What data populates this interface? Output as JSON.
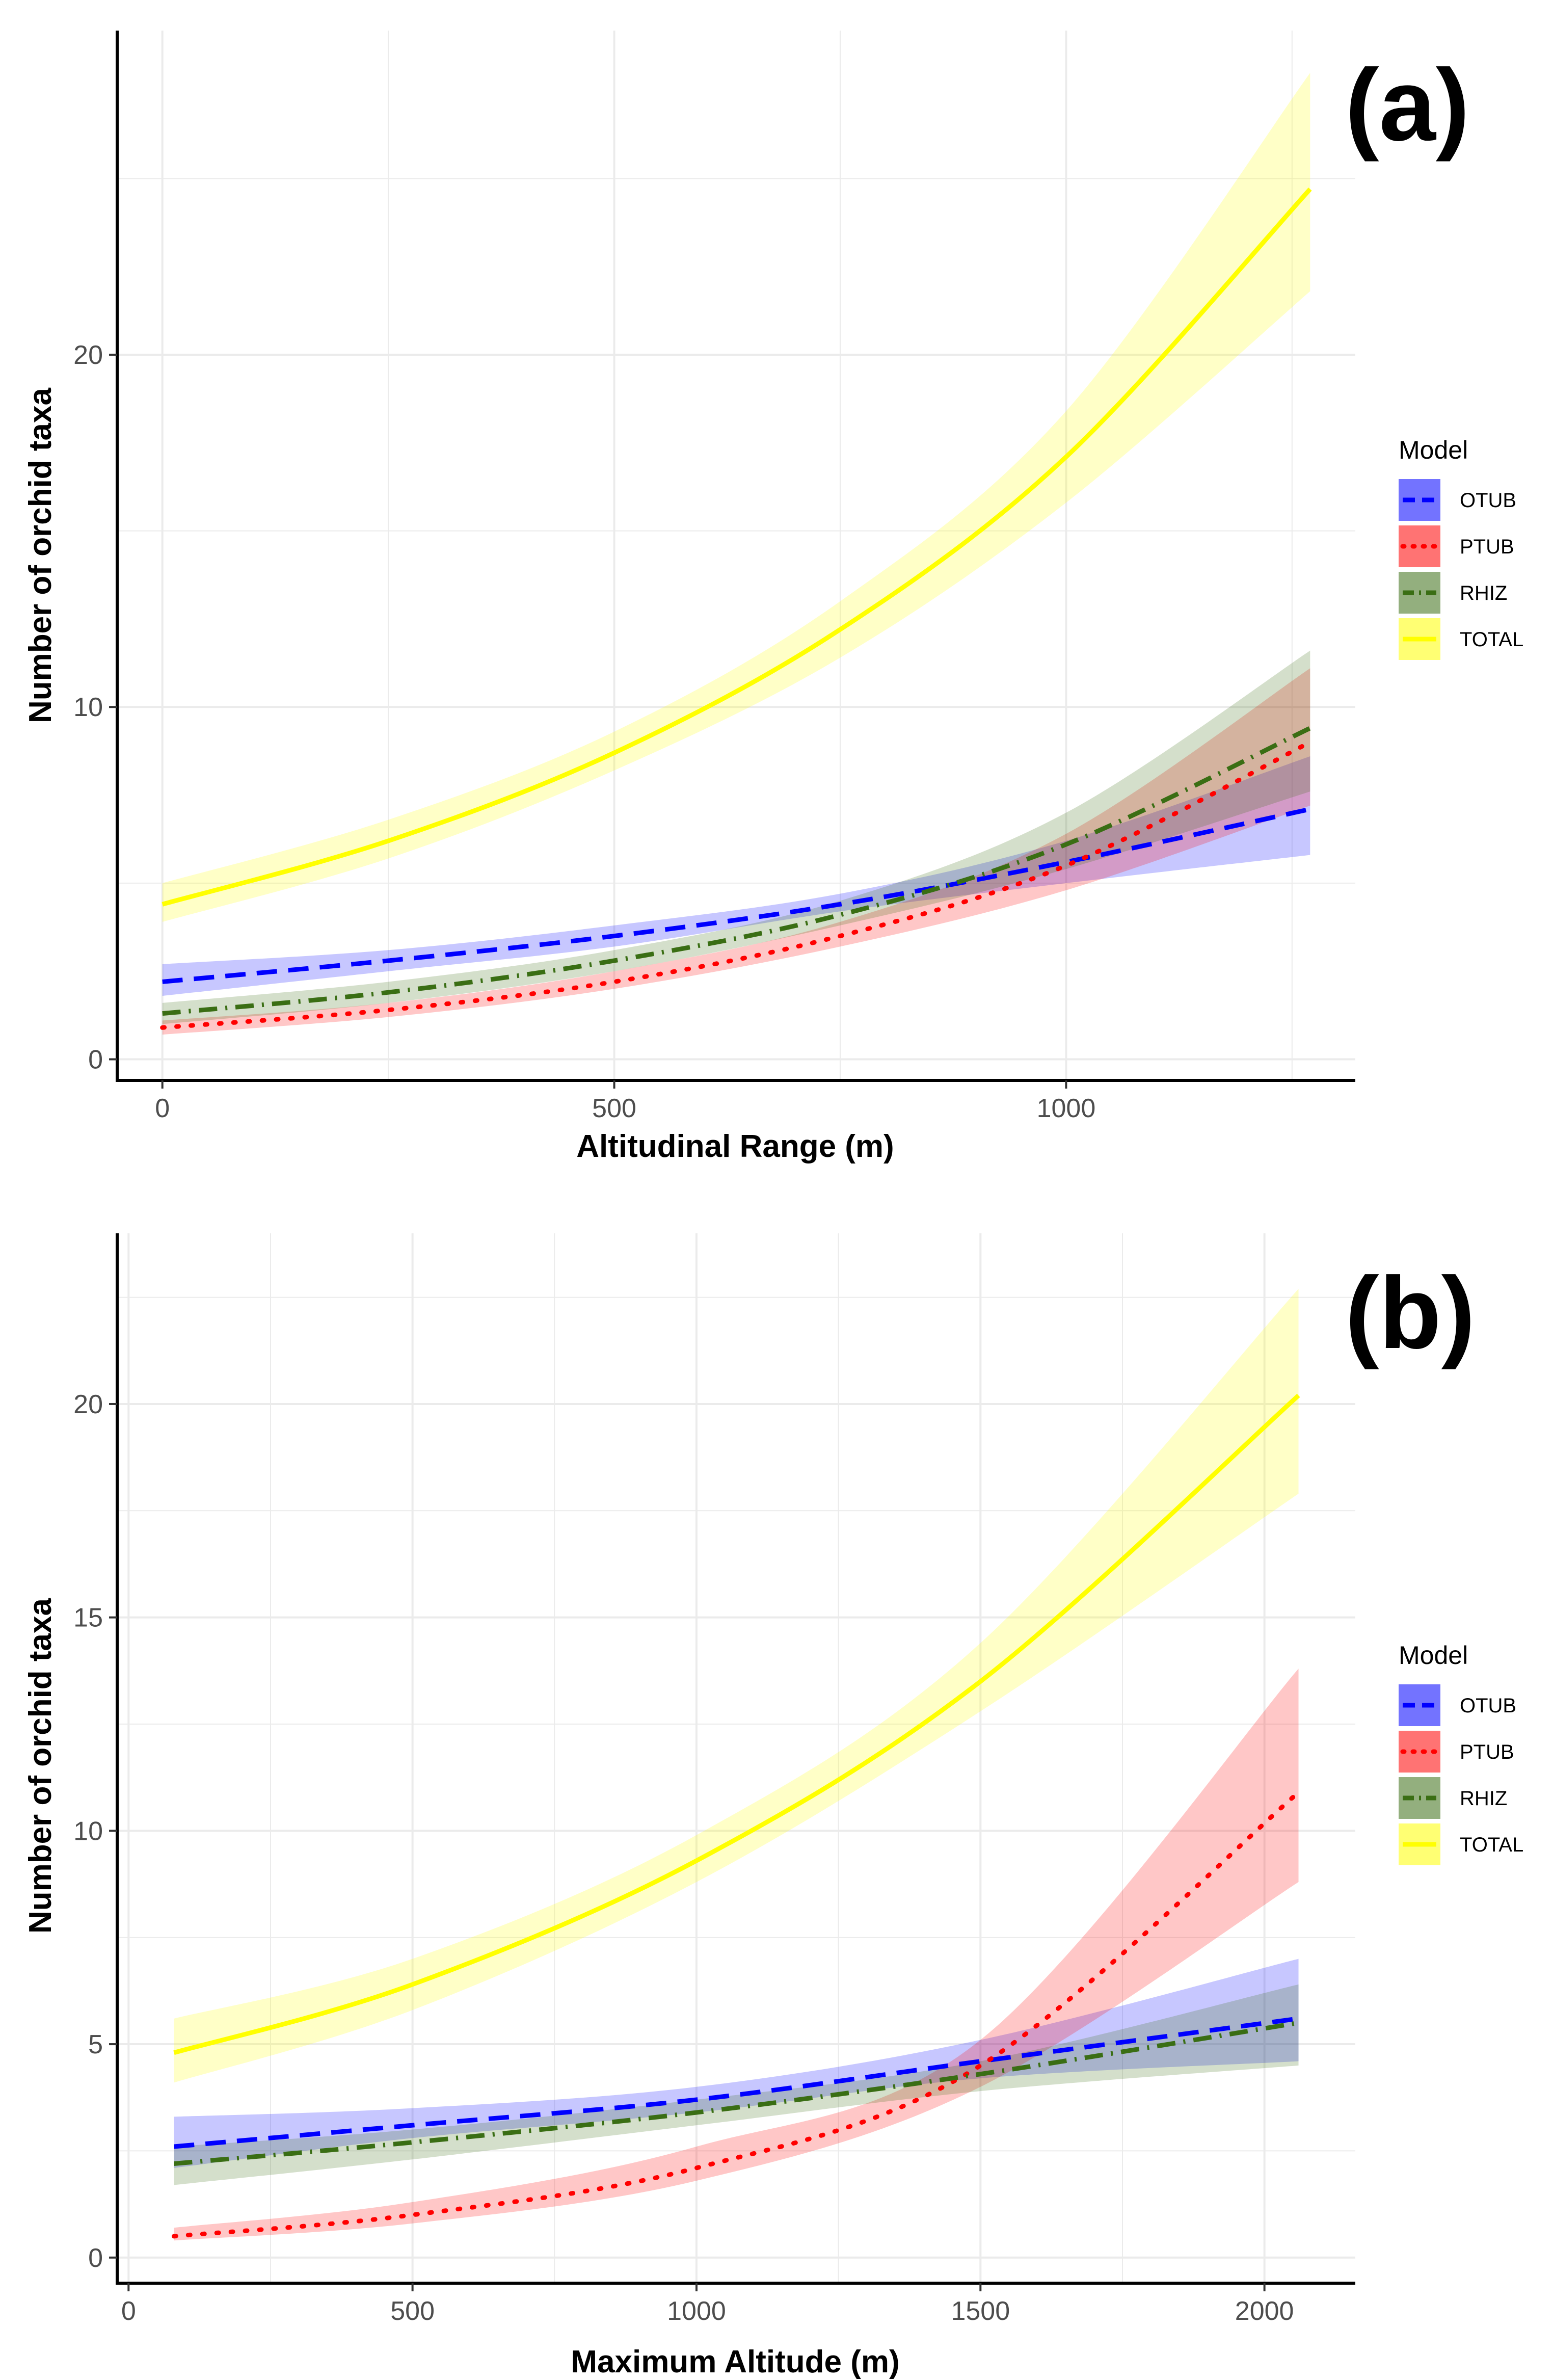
{
  "chart_data": [
    {
      "type": "line",
      "panel_label": "(a)",
      "xlabel": "Altitudinal Range (m)",
      "ylabel": "Number of orchid taxa",
      "xlim": [
        -50,
        1320
      ],
      "ylim": [
        -0.6,
        29.2
      ],
      "x_ticks": [
        0,
        500,
        1000
      ],
      "x_tick_labels": [
        "0",
        "500",
        "1000"
      ],
      "y_ticks": [
        0,
        10,
        20
      ],
      "y_tick_labels": [
        "0",
        "10",
        "20"
      ],
      "grid": true,
      "legend": {
        "title": "Model",
        "position": "right"
      },
      "series": [
        {
          "name": "OTUB",
          "color": "#0000ff",
          "dash": "dashed",
          "x": [
            0,
            250,
            500,
            750,
            1000,
            1270
          ],
          "y": [
            2.2,
            2.8,
            3.5,
            4.4,
            5.6,
            7.1
          ],
          "lower": [
            1.8,
            2.5,
            3.2,
            4.2,
            5.0,
            5.8
          ],
          "upper": [
            2.7,
            3.1,
            3.8,
            4.7,
            6.2,
            8.6
          ]
        },
        {
          "name": "PTUB",
          "color": "#ff0000",
          "dash": "dotted",
          "x": [
            0,
            250,
            500,
            750,
            1000,
            1270
          ],
          "y": [
            0.9,
            1.4,
            2.2,
            3.5,
            5.5,
            9.0
          ],
          "lower": [
            0.7,
            1.2,
            2.0,
            3.2,
            4.8,
            7.2
          ],
          "upper": [
            1.1,
            1.6,
            2.5,
            3.9,
            6.4,
            11.1
          ]
        },
        {
          "name": "RHIZ",
          "color": "#3a6e14",
          "dash": "dashdot",
          "x": [
            0,
            250,
            500,
            750,
            1000,
            1270
          ],
          "y": [
            1.3,
            1.9,
            2.8,
            4.1,
            6.1,
            9.4
          ],
          "lower": [
            1.0,
            1.6,
            2.5,
            3.8,
            5.4,
            7.6
          ],
          "upper": [
            1.6,
            2.2,
            3.1,
            4.5,
            7.0,
            11.6
          ]
        },
        {
          "name": "TOTAL",
          "color": "#ffff00",
          "dash": "solid",
          "x": [
            0,
            250,
            500,
            750,
            1000,
            1270
          ],
          "y": [
            4.4,
            6.2,
            8.7,
            12.2,
            17.1,
            24.7
          ],
          "lower": [
            3.9,
            5.7,
            8.2,
            11.4,
            15.8,
            21.8
          ],
          "upper": [
            5.0,
            6.8,
            9.3,
            13.0,
            18.4,
            28.0
          ]
        }
      ]
    },
    {
      "type": "line",
      "panel_label": "(b)",
      "xlabel": "Maximum Altitude (m)",
      "ylabel": "Number of orchid taxa",
      "xlim": [
        -20,
        2160
      ],
      "ylim": [
        -0.6,
        24.0
      ],
      "x_ticks": [
        0,
        500,
        1000,
        1500,
        2000
      ],
      "x_tick_labels": [
        "0",
        "500",
        "1000",
        "1500",
        "2000"
      ],
      "y_ticks": [
        0,
        5,
        10,
        15,
        20
      ],
      "y_tick_labels": [
        "0",
        "5",
        "10",
        "15",
        "20"
      ],
      "grid": true,
      "legend": {
        "title": "Model",
        "position": "right"
      },
      "series": [
        {
          "name": "OTUB",
          "color": "#0000ff",
          "dash": "dashed",
          "x": [
            80,
            500,
            1000,
            1500,
            2060
          ],
          "y": [
            2.6,
            3.1,
            3.7,
            4.6,
            5.6
          ],
          "lower": [
            2.1,
            2.8,
            3.4,
            4.2,
            4.6
          ],
          "upper": [
            3.3,
            3.5,
            4.0,
            5.1,
            7.0
          ]
        },
        {
          "name": "PTUB",
          "color": "#ff0000",
          "dash": "dotted",
          "x": [
            80,
            500,
            1000,
            1500,
            2060
          ],
          "y": [
            0.5,
            1.0,
            2.1,
            4.5,
            10.9
          ],
          "lower": [
            0.4,
            0.8,
            1.8,
            4.0,
            8.8
          ],
          "upper": [
            0.7,
            1.3,
            2.6,
            5.1,
            13.8
          ]
        },
        {
          "name": "RHIZ",
          "color": "#3a6e14",
          "dash": "dashdot",
          "x": [
            80,
            500,
            1000,
            1500,
            2060
          ],
          "y": [
            2.2,
            2.7,
            3.4,
            4.3,
            5.5
          ],
          "lower": [
            1.7,
            2.3,
            3.1,
            3.9,
            4.5
          ],
          "upper": [
            2.6,
            3.0,
            3.7,
            4.6,
            6.4
          ]
        },
        {
          "name": "TOTAL",
          "color": "#ffff00",
          "dash": "solid",
          "x": [
            80,
            500,
            1000,
            1500,
            2060
          ],
          "y": [
            4.8,
            6.4,
            9.3,
            13.5,
            20.2
          ],
          "lower": [
            4.1,
            5.8,
            8.8,
            12.8,
            17.9
          ],
          "upper": [
            5.6,
            7.0,
            9.9,
            14.4,
            22.7
          ]
        }
      ]
    }
  ]
}
